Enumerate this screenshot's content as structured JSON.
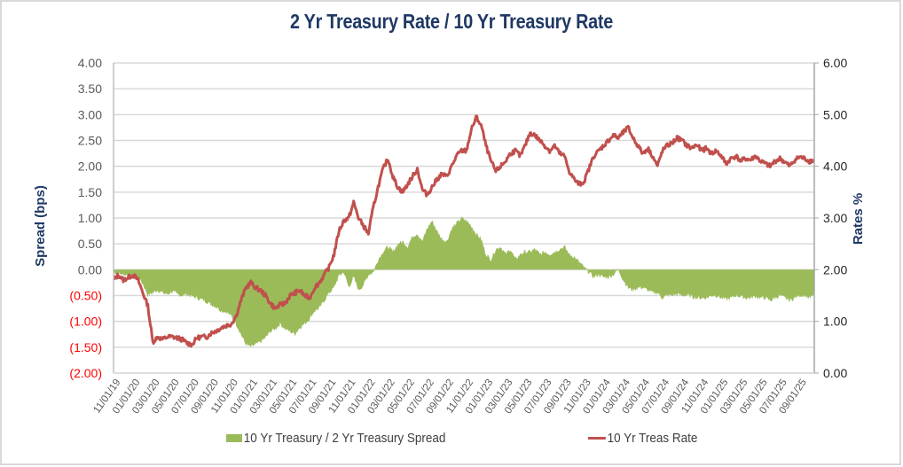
{
  "chart_data": {
    "type": "area+line",
    "title": "2 Yr Treasury Rate / 10 Yr Treasury Rate",
    "ylabel_left": "Spread (bps)",
    "ylabel_right": "Rates %",
    "xlabel": "",
    "ylim_left": [
      -2.0,
      4.0
    ],
    "ylim_right": [
      0.0,
      6.0
    ],
    "yticks_left": [
      "4.00",
      "3.50",
      "3.00",
      "2.50",
      "2.00",
      "1.50",
      "1.00",
      "0.50",
      "0.00",
      "(0.50)",
      "(1.00)",
      "(1.50)",
      "(2.00)"
    ],
    "yticks_left_values": [
      4.0,
      3.5,
      3.0,
      2.5,
      2.0,
      1.5,
      1.0,
      0.5,
      0.0,
      -0.5,
      -1.0,
      -1.5,
      -2.0
    ],
    "yticks_right": [
      "6.00",
      "5.00",
      "4.00",
      "3.00",
      "2.00",
      "1.00",
      "0.00"
    ],
    "yticks_right_values": [
      6,
      5,
      4,
      3,
      2,
      1,
      0
    ],
    "xticks": [
      "11/01/19",
      "01/01/20",
      "03/01/20",
      "05/01/20",
      "07/01/20",
      "09/01/20",
      "11/01/20",
      "01/01/21",
      "03/01/21",
      "05/01/21",
      "07/01/21",
      "09/01/21",
      "11/01/21",
      "01/01/22",
      "03/01/22",
      "05/01/22",
      "07/01/22",
      "09/01/22",
      "11/01/22",
      "01/01/23",
      "03/01/23",
      "05/01/23",
      "07/01/23",
      "09/01/23",
      "11/01/23",
      "01/01/24",
      "03/01/24",
      "05/01/24",
      "07/01/24",
      "09/01/24",
      "11/01/24",
      "01/01/25",
      "03/01/25",
      "05/01/25",
      "07/01/25",
      "09/01/25"
    ],
    "x_months_from_start": [
      0,
      0.5,
      1,
      1.5,
      2,
      2.5,
      3,
      3.5,
      4,
      4.5,
      5,
      5.5,
      6,
      6.5,
      7,
      7.5,
      8,
      8.5,
      9,
      9.5,
      10,
      10.5,
      11,
      11.5,
      12,
      12.5,
      13,
      13.5,
      14,
      14.5,
      15,
      15.5,
      16,
      16.5,
      17,
      17.5,
      18,
      18.5,
      19,
      19.5,
      20,
      20.5,
      21,
      21.5,
      22,
      22.5,
      23,
      23.5,
      24,
      24.5,
      25,
      25.5,
      26,
      26.5,
      27,
      27.5,
      28,
      28.5,
      29,
      29.5,
      30,
      30.5,
      31,
      31.5,
      32,
      32.5,
      33,
      33.5,
      34,
      34.5,
      35,
      35.5,
      36,
      36.5,
      37,
      37.5,
      38,
      38.5,
      39,
      39.5,
      40,
      40.5,
      41,
      41.5,
      42,
      42.5,
      43,
      43.5,
      44,
      44.5,
      45,
      45.5,
      46,
      46.5,
      47,
      47.5,
      48,
      48.5,
      49,
      49.5,
      50,
      50.5,
      51,
      51.5,
      52,
      52.5,
      53,
      53.5,
      54,
      54.5,
      55,
      55.5,
      56,
      56.5,
      57,
      57.5,
      58,
      58.5,
      59,
      59.5,
      60,
      60.5,
      61,
      61.5,
      62,
      62.5,
      63,
      63.5,
      64,
      64.5,
      65,
      65.5,
      66,
      66.5,
      67,
      67.5,
      68,
      68.5,
      69,
      69.5,
      70,
      70.5,
      71,
      71.5
    ],
    "series": [
      {
        "name": "10 Yr Treasury / 2 Yr Treasury Spread",
        "type": "area",
        "color": "#9bbb59",
        "axis": "left",
        "values": [
          -0.05,
          -0.08,
          -0.1,
          -0.1,
          -0.12,
          -0.15,
          -0.28,
          -0.5,
          -0.45,
          -0.4,
          -0.45,
          -0.48,
          -0.42,
          -0.48,
          -0.5,
          -0.48,
          -0.52,
          -0.55,
          -0.58,
          -0.62,
          -0.68,
          -0.72,
          -0.8,
          -0.82,
          -0.9,
          -1.05,
          -1.25,
          -1.45,
          -1.5,
          -1.45,
          -1.4,
          -1.32,
          -1.2,
          -1.15,
          -1.05,
          -1.15,
          -1.2,
          -1.25,
          -1.12,
          -1.05,
          -0.95,
          -0.8,
          -0.75,
          -0.6,
          -0.45,
          -0.35,
          -0.12,
          -0.05,
          -0.35,
          -0.15,
          -0.4,
          -0.3,
          -0.1,
          -0.05,
          0.2,
          0.35,
          0.45,
          0.35,
          0.5,
          0.55,
          0.45,
          0.65,
          0.7,
          0.55,
          0.8,
          0.95,
          0.75,
          0.6,
          0.55,
          0.8,
          0.9,
          1.0,
          0.95,
          0.85,
          0.7,
          0.6,
          0.3,
          0.2,
          0.4,
          0.45,
          0.3,
          0.4,
          0.2,
          0.3,
          0.35,
          0.35,
          0.4,
          0.3,
          0.35,
          0.3,
          0.35,
          0.4,
          0.45,
          0.3,
          0.25,
          0.15,
          0.05,
          -0.05,
          -0.15,
          -0.1,
          -0.15,
          -0.15,
          -0.1,
          0.0,
          -0.2,
          -0.35,
          -0.4,
          -0.35,
          -0.35,
          -0.4,
          -0.45,
          -0.45,
          -0.55,
          -0.5,
          -0.5,
          -0.48,
          -0.5,
          -0.5,
          -0.52,
          -0.55,
          -0.55,
          -0.55,
          -0.5,
          -0.5,
          -0.55,
          -0.58,
          -0.55,
          -0.5,
          -0.52,
          -0.55,
          -0.55,
          -0.52,
          -0.55,
          -0.55,
          -0.6,
          -0.55,
          -0.5,
          -0.55,
          -0.6,
          -0.55,
          -0.5,
          -0.5,
          -0.55,
          -0.5
        ]
      },
      {
        "name": "10 Yr Treas Rate",
        "type": "line",
        "color": "#c0504d",
        "axis": "right",
        "values": [
          1.8,
          1.9,
          1.8,
          1.85,
          1.9,
          1.8,
          1.55,
          1.3,
          0.6,
          0.7,
          0.65,
          0.7,
          0.7,
          0.68,
          0.65,
          0.58,
          0.55,
          0.68,
          0.7,
          0.7,
          0.78,
          0.82,
          0.88,
          0.92,
          0.95,
          1.1,
          1.4,
          1.65,
          1.75,
          1.65,
          1.6,
          1.5,
          1.35,
          1.25,
          1.32,
          1.35,
          1.5,
          1.55,
          1.6,
          1.5,
          1.45,
          1.65,
          1.75,
          1.9,
          2.05,
          2.3,
          2.75,
          2.95,
          3.0,
          3.3,
          3.0,
          2.85,
          2.7,
          3.2,
          3.6,
          3.95,
          4.15,
          3.8,
          3.6,
          3.5,
          3.65,
          3.8,
          3.95,
          3.55,
          3.45,
          3.6,
          3.75,
          3.85,
          3.8,
          4.0,
          4.2,
          4.3,
          4.3,
          4.7,
          4.95,
          4.8,
          4.4,
          4.1,
          3.9,
          4.0,
          4.1,
          4.25,
          4.3,
          4.2,
          4.4,
          4.65,
          4.6,
          4.5,
          4.4,
          4.3,
          4.4,
          4.25,
          4.2,
          3.9,
          3.75,
          3.65,
          3.7,
          3.95,
          4.2,
          4.3,
          4.4,
          4.5,
          4.6,
          4.55,
          4.65,
          4.75,
          4.55,
          4.4,
          4.25,
          4.35,
          4.2,
          4.0,
          4.3,
          4.4,
          4.45,
          4.55,
          4.5,
          4.4,
          4.35,
          4.42,
          4.3,
          4.35,
          4.25,
          4.3,
          4.2,
          4.05,
          4.15,
          4.2,
          4.1,
          4.15,
          4.12,
          4.2,
          4.1,
          4.05,
          4.0,
          4.1,
          4.15,
          4.08,
          4.0,
          4.12,
          4.18,
          4.15,
          4.1,
          4.12
        ]
      }
    ],
    "grid": "horizontal",
    "legend": "bottom",
    "legend_entries": [
      "10 Yr Treasury / 2 Yr Treasury Spread",
      "10 Yr Treas Rate"
    ]
  }
}
